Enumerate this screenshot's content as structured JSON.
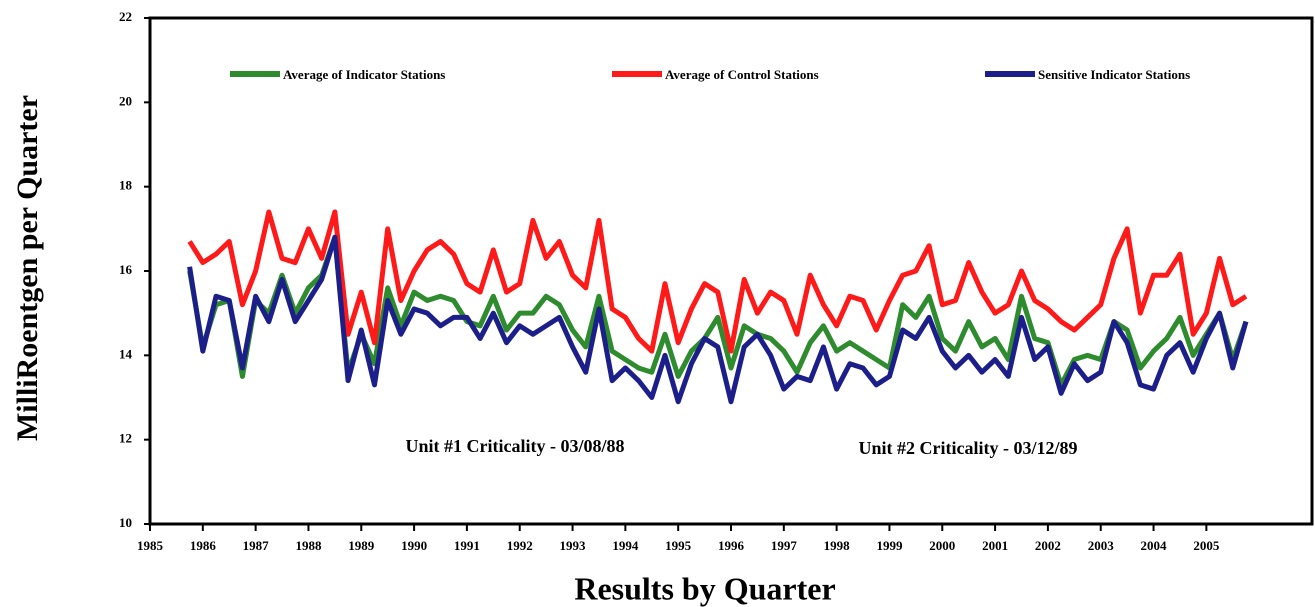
{
  "chart_data": {
    "type": "line",
    "xlabel": "Results by Quarter",
    "ylabel": "MilliRoentgen per Quarter",
    "annotations": [
      "Unit #1 Criticality - 03/08/88",
      "Unit #2 Criticality - 03/12/89"
    ],
    "xlim": [
      1985,
      2007
    ],
    "ylim": [
      10,
      22
    ],
    "xticks": [
      1985,
      1986,
      1987,
      1988,
      1989,
      1990,
      1991,
      1992,
      1993,
      1994,
      1995,
      1996,
      1997,
      1998,
      1999,
      2000,
      2001,
      2002,
      2003,
      2004,
      2005
    ],
    "yticks": [
      10,
      12,
      14,
      16,
      18,
      20,
      22
    ],
    "x": [
      1985.75,
      1986,
      1986.25,
      1986.5,
      1986.75,
      1987,
      1987.25,
      1987.5,
      1987.75,
      1988,
      1988.25,
      1988.5,
      1988.75,
      1989,
      1989.25,
      1989.5,
      1989.75,
      1990,
      1990.25,
      1990.5,
      1990.75,
      1991,
      1991.25,
      1991.5,
      1991.75,
      1992,
      1992.25,
      1992.5,
      1992.75,
      1993,
      1993.25,
      1993.5,
      1993.75,
      1994,
      1994.25,
      1994.5,
      1994.75,
      1995,
      1995.25,
      1995.5,
      1995.75,
      1996,
      1996.25,
      1996.5,
      1996.75,
      1997,
      1997.25,
      1997.5,
      1997.75,
      1998,
      1998.25,
      1998.5,
      1998.75,
      1999,
      1999.25,
      1999.5,
      1999.75,
      2000,
      2000.25,
      2000.5,
      2000.75,
      2001,
      2001.25,
      2001.5,
      2001.75,
      2002,
      2002.25,
      2002.5,
      2002.75,
      2003,
      2003.25,
      2003.5,
      2003.75,
      2004,
      2004.25,
      2004.5,
      2004.75,
      2005,
      2005.25,
      2005.5,
      2005.75
    ],
    "series": [
      {
        "name": "Average of Indicator Stations",
        "color": "#2e8b2e",
        "values": [
          16.0,
          14.2,
          15.2,
          15.3,
          13.5,
          15.3,
          15.0,
          15.9,
          15.0,
          15.6,
          15.9,
          16.8,
          13.6,
          14.5,
          13.8,
          15.6,
          14.7,
          15.5,
          15.3,
          15.4,
          15.3,
          14.8,
          14.7,
          15.4,
          14.6,
          15.0,
          15.0,
          15.4,
          15.2,
          14.6,
          14.2,
          15.4,
          14.1,
          13.9,
          13.7,
          13.6,
          14.5,
          13.5,
          14.1,
          14.4,
          14.9,
          13.7,
          14.7,
          14.5,
          14.4,
          14.1,
          13.6,
          14.3,
          14.7,
          14.1,
          14.3,
          14.1,
          13.9,
          13.7,
          15.2,
          14.9,
          15.4,
          14.4,
          14.1,
          14.8,
          14.2,
          14.4,
          13.9,
          15.4,
          14.4,
          14.3,
          13.3,
          13.9,
          14.0,
          13.9,
          14.8,
          14.6,
          13.7,
          14.1,
          14.4,
          14.9,
          14.0,
          14.5,
          15.0,
          13.9,
          14.8
        ]
      },
      {
        "name": "Average of Control Stations",
        "color": "#ff1a1a",
        "values": [
          16.7,
          16.2,
          16.4,
          16.7,
          15.2,
          16.0,
          17.4,
          16.3,
          16.2,
          17.0,
          16.3,
          17.4,
          14.5,
          15.5,
          14.3,
          17.0,
          15.3,
          16.0,
          16.5,
          16.7,
          16.4,
          15.7,
          15.5,
          16.5,
          15.5,
          15.7,
          17.2,
          16.3,
          16.7,
          15.9,
          15.6,
          17.2,
          15.1,
          14.9,
          14.4,
          14.1,
          15.7,
          14.3,
          15.1,
          15.7,
          15.5,
          14.1,
          15.8,
          15.0,
          15.5,
          15.3,
          14.5,
          15.9,
          15.2,
          14.7,
          15.4,
          15.3,
          14.6,
          15.3,
          15.9,
          16.0,
          16.6,
          15.2,
          15.3,
          16.2,
          15.5,
          15.0,
          15.2,
          16.0,
          15.3,
          15.1,
          14.8,
          14.6,
          14.9,
          15.2,
          16.3,
          17.0,
          15.0,
          15.9,
          15.9,
          16.4,
          14.5,
          15.0,
          16.3,
          15.2,
          15.4
        ]
      },
      {
        "name": "Sensitive Indicator Stations",
        "color": "#1c1f8a",
        "values": [
          16.1,
          14.1,
          15.4,
          15.3,
          13.7,
          15.4,
          14.8,
          15.8,
          14.8,
          15.3,
          15.8,
          16.8,
          13.4,
          14.6,
          13.3,
          15.3,
          14.5,
          15.1,
          15.0,
          14.7,
          14.9,
          14.9,
          14.4,
          15.0,
          14.3,
          14.7,
          14.5,
          14.7,
          14.9,
          14.2,
          13.6,
          15.1,
          13.4,
          13.7,
          13.4,
          13.0,
          14.0,
          12.9,
          13.8,
          14.4,
          14.2,
          12.9,
          14.2,
          14.5,
          14.0,
          13.2,
          13.5,
          13.4,
          14.2,
          13.2,
          13.8,
          13.7,
          13.3,
          13.5,
          14.6,
          14.4,
          14.9,
          14.1,
          13.7,
          14.0,
          13.6,
          13.9,
          13.5,
          14.9,
          13.9,
          14.2,
          13.1,
          13.8,
          13.4,
          13.6,
          14.8,
          14.3,
          13.3,
          13.2,
          14.0,
          14.3,
          13.6,
          14.4,
          15.0,
          13.7,
          14.8
        ]
      }
    ]
  }
}
